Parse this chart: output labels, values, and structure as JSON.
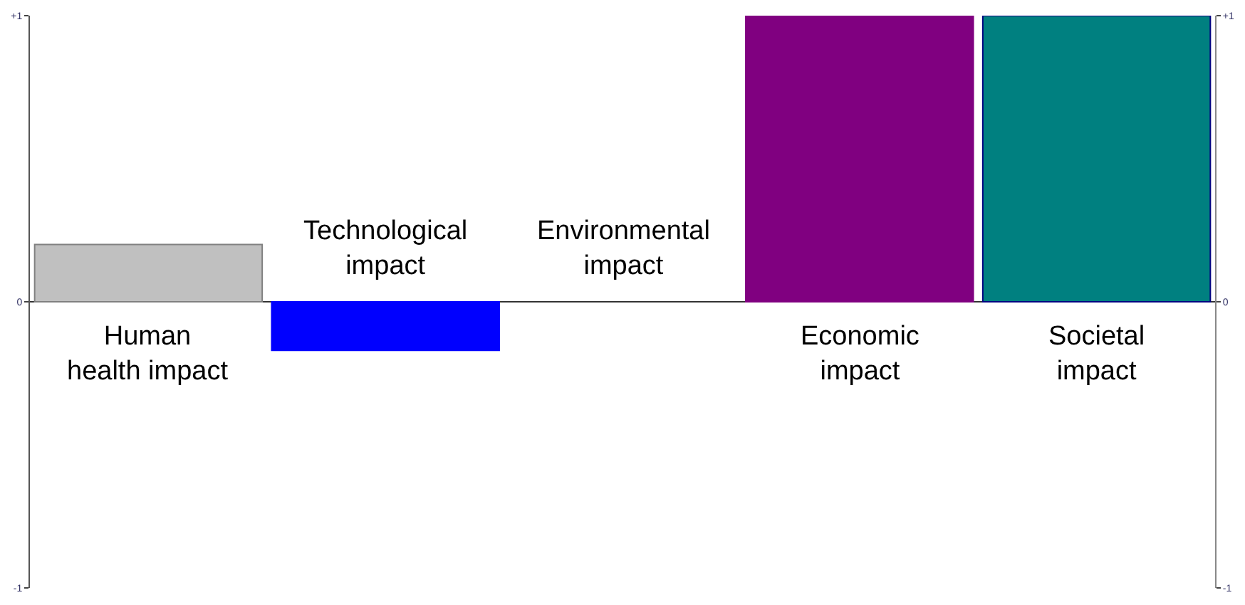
{
  "chart_data": {
    "type": "bar",
    "categories": [
      "Human\nhealth impact",
      "Technological\nimpact",
      "Environmental\nimpact",
      "Economic\nimpact",
      "Societal\nimpact"
    ],
    "values": [
      0.2,
      -0.17,
      0,
      1,
      1
    ],
    "colors": [
      "#c0c0c0",
      "#0000ff",
      "#ffffff",
      "#800080",
      "#008080"
    ],
    "ylim": [
      -1,
      1
    ],
    "yticks": [
      {
        "value": 1,
        "label": "+1"
      },
      0,
      -1
    ],
    "y2lim": [
      -1,
      1
    ],
    "y2ticks": [
      {
        "value": 1,
        "label": "+1"
      },
      0,
      -1
    ]
  }
}
